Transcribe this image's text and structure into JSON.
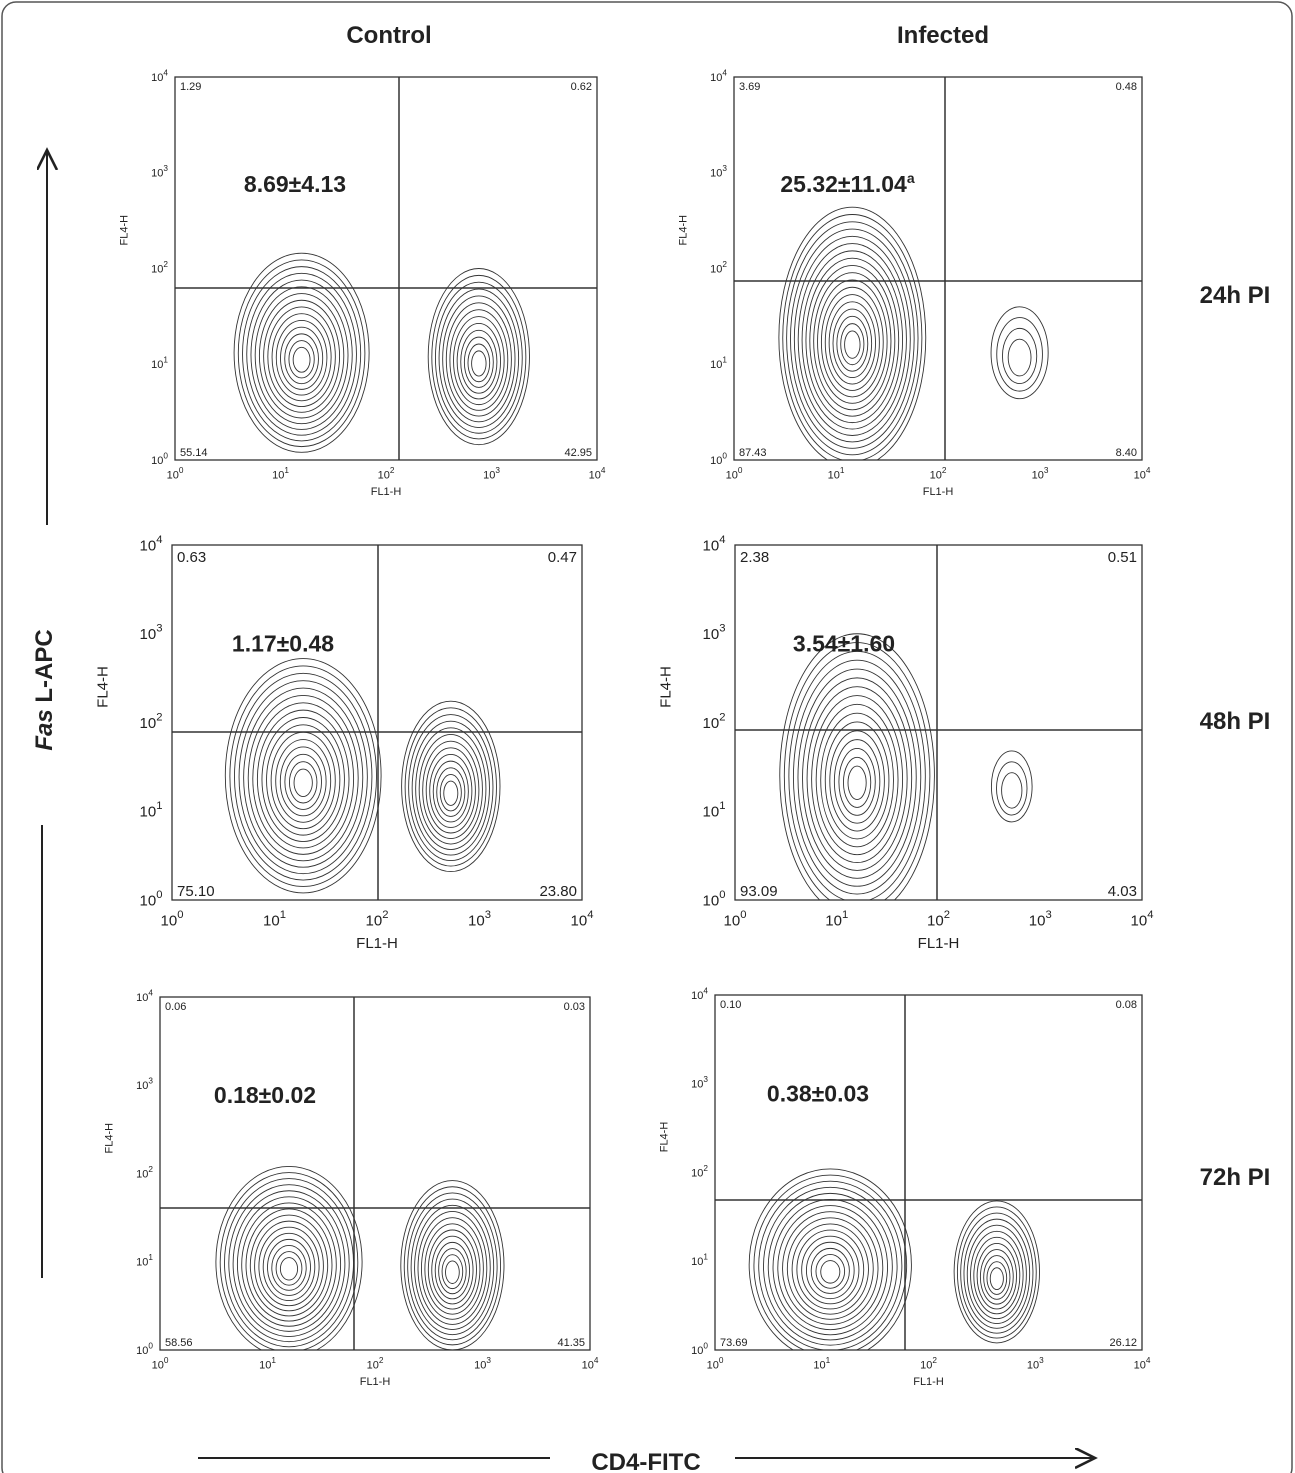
{
  "columns": [
    "Control",
    "Infected"
  ],
  "rows": [
    "24h PI",
    "48h PI",
    "72h PI"
  ],
  "y_axis_label": {
    "italic": "Fas",
    "rest": "L-APC"
  },
  "x_axis_label": "CD4-FITC",
  "axis_ticks": [
    {
      "base": "10",
      "exponent": "0"
    },
    {
      "base": "10",
      "exponent": "1"
    },
    {
      "base": "10",
      "exponent": "2"
    },
    {
      "base": "10",
      "exponent": "3"
    },
    {
      "base": "10",
      "exponent": "4"
    }
  ],
  "panels": [
    {
      "x_label": "FL1-H",
      "y_label": "FL4-H",
      "quadrants": [
        "1.29",
        "0.62",
        "55.14",
        "42.95"
      ],
      "stat": "8.69±4.13"
    },
    {
      "x_label": "FL1-H",
      "y_label": "FL4-H",
      "quadrants": [
        "3.69",
        "0.48",
        "87.43",
        "8.40"
      ],
      "stat": "25.32±11.04",
      "stat_note": "a"
    },
    {
      "x_label": "FL1-H",
      "y_label": "FL4-H",
      "quadrants": [
        "0.63",
        "0.47",
        "75.10",
        "23.80"
      ],
      "stat": "1.17±0.48"
    },
    {
      "x_label": "FL1-H",
      "y_label": "FL4-H",
      "quadrants": [
        "2.38",
        "0.51",
        "93.09",
        "4.03"
      ],
      "stat": "3.54±1.60"
    },
    {
      "x_label": "FL1-H",
      "y_label": "FL4-H",
      "quadrants": [
        "0.06",
        "0.03",
        "58.56",
        "41.35"
      ],
      "stat": "0.18±0.02"
    },
    {
      "x_label": "FL1-H",
      "y_label": "FL4-H",
      "quadrants": [
        "0.10",
        "0.08",
        "73.69",
        "26.12"
      ],
      "stat": "0.38±0.03"
    }
  ]
}
